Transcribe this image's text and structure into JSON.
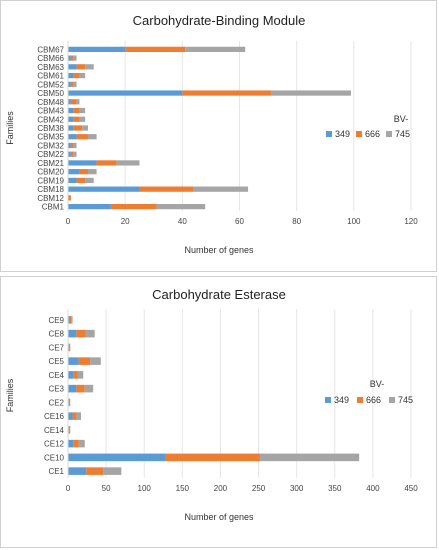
{
  "chart_data": [
    {
      "type": "bar",
      "orientation": "horizontal",
      "stacked": true,
      "title": "Carbohydrate-Binding Module",
      "xlabel": "Number of genes",
      "ylabel": "Families",
      "xlim": [
        0,
        120
      ],
      "x_ticks": [
        0,
        20,
        40,
        60,
        80,
        100,
        120
      ],
      "grid": true,
      "legend_title": "BV-",
      "legend_position": "right",
      "categories": [
        "CBM1",
        "CBM12",
        "CBM18",
        "CBM19",
        "CBM20",
        "CBM21",
        "CBM22",
        "CBM32",
        "CBM35",
        "CBM38",
        "CBM42",
        "CBM43",
        "CBM48",
        "CBM50",
        "CBM52",
        "CBM61",
        "CBM63",
        "CBM66",
        "CBM67"
      ],
      "series": [
        {
          "name": "349",
          "color": "#5B9BD5",
          "values": [
            15,
            0,
            25,
            3,
            4,
            10,
            1,
            1,
            3,
            2,
            2,
            2,
            1,
            40,
            1,
            2,
            3,
            1,
            20
          ]
        },
        {
          "name": "666",
          "color": "#ED7D31",
          "values": [
            16,
            1,
            19,
            3,
            3,
            7,
            1,
            1,
            4,
            3,
            2,
            2,
            2,
            31,
            1,
            2,
            3,
            1,
            21
          ]
        },
        {
          "name": "745",
          "color": "#A5A5A5",
          "values": [
            17,
            0,
            19,
            3,
            3,
            8,
            1,
            1,
            3,
            2,
            2,
            2,
            1,
            28,
            1,
            2,
            3,
            1,
            21
          ]
        }
      ]
    },
    {
      "type": "bar",
      "orientation": "horizontal",
      "stacked": true,
      "title": "Carbohydrate Esterase",
      "xlabel": "Number of genes",
      "ylabel": "Families",
      "xlim": [
        0,
        450
      ],
      "x_ticks": [
        0,
        50,
        100,
        150,
        200,
        250,
        300,
        350,
        400,
        450
      ],
      "grid": true,
      "legend_title": "BV-",
      "legend_position": "right",
      "categories": [
        "CE1",
        "CE10",
        "CE12",
        "CE14",
        "CE16",
        "CE2",
        "CE3",
        "CE4",
        "CE5",
        "CE7",
        "CE8",
        "CE9"
      ],
      "series": [
        {
          "name": "349",
          "color": "#5B9BD5",
          "values": [
            24,
            128,
            7,
            1,
            6,
            1,
            11,
            7,
            14,
            1,
            11,
            2
          ]
        },
        {
          "name": "666",
          "color": "#ED7D31",
          "values": [
            22,
            124,
            7,
            1,
            5,
            1,
            11,
            6,
            15,
            1,
            12,
            2
          ]
        },
        {
          "name": "745",
          "color": "#A5A5A5",
          "values": [
            24,
            130,
            8,
            1,
            6,
            1,
            11,
            7,
            14,
            1,
            12,
            2
          ]
        }
      ]
    }
  ]
}
